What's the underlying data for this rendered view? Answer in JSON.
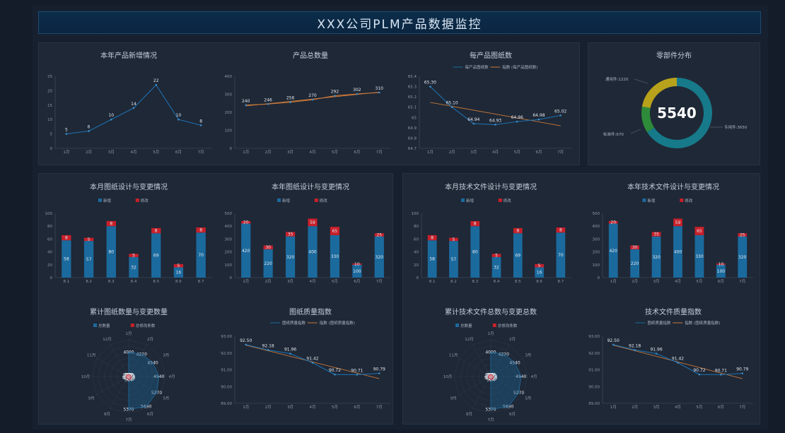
{
  "title": "XXX公司PLM产品数据监控",
  "colors": {
    "blue": "#1b6a9e",
    "red": "#c8202a",
    "orange": "#c8783a",
    "teal": "#167a8a",
    "green": "#2e8b3a",
    "yellow": "#b8a21c"
  },
  "chart_data": [
    {
      "id": "c1",
      "type": "line",
      "title": "本年产品新增情况",
      "categories": [
        "1月",
        "2月",
        "3月",
        "4月",
        "5月",
        "6月",
        "7月"
      ],
      "values": [
        5,
        6,
        10,
        14,
        22,
        10,
        8
      ],
      "yticks": [
        "0",
        "5",
        "10",
        "15",
        "20",
        "25"
      ],
      "ylim": [
        0,
        25
      ]
    },
    {
      "id": "c2",
      "type": "line",
      "title": "产品总数量",
      "categories": [
        "1月",
        "2月",
        "3月",
        "4月",
        "5月",
        "6月",
        "7月"
      ],
      "values": [
        240,
        246,
        256,
        270,
        292,
        302,
        310
      ],
      "yticks": [
        "0",
        "100",
        "200",
        "300",
        "400"
      ],
      "ylim": [
        0,
        400
      ]
    },
    {
      "id": "c3",
      "type": "line",
      "title": "每产品图纸数",
      "legend": [
        "每产品图纸数",
        "指数 (每产品图纸数)"
      ],
      "categories": [
        "1月",
        "2月",
        "3月",
        "4月",
        "5月",
        "6月",
        "7月"
      ],
      "values": [
        65.3,
        65.1,
        64.94,
        64.93,
        64.96,
        64.98,
        65.02
      ],
      "value_labels": [
        "65.30",
        "65.10",
        "64.94",
        "64.93",
        "64.96",
        "64.98",
        "65.02"
      ],
      "yticks": [
        "64.7",
        "64.8",
        "64.9",
        "65",
        "65.1",
        "65.2",
        "65.3",
        "65.4"
      ],
      "ylim": [
        64.7,
        65.4
      ]
    },
    {
      "id": "donut",
      "type": "pie",
      "title": "零部件分布",
      "total": "5540",
      "slices": [
        {
          "name": "专用件",
          "label": "专用件:3650",
          "value": 3650
        },
        {
          "name": "标准件",
          "label": "标准件:670",
          "value": 670
        },
        {
          "name": "通用件",
          "label": "通用件:1220",
          "value": 1220
        }
      ]
    },
    {
      "id": "b1",
      "type": "bar",
      "title": "本月图纸设计与变更情况",
      "legend": [
        "新增",
        "修改"
      ],
      "categories": [
        "8.1",
        "8.2",
        "8.3",
        "8.4",
        "8.5",
        "8.6",
        "8.7"
      ],
      "series": [
        {
          "name": "新增",
          "values": [
            58,
            57,
            80,
            32,
            69,
            16,
            70
          ]
        },
        {
          "name": "修改",
          "values": [
            8,
            5,
            8,
            5,
            8,
            5,
            8
          ]
        }
      ],
      "yticks": [
        "0",
        "20",
        "40",
        "60",
        "80",
        "100"
      ],
      "ylim": [
        0,
        100
      ]
    },
    {
      "id": "b2",
      "type": "bar",
      "title": "本年图纸设计与变更情况",
      "legend": [
        "新增",
        "修改"
      ],
      "categories": [
        "1月",
        "2月",
        "3月",
        "4月",
        "5月",
        "6月",
        "7月"
      ],
      "series": [
        {
          "name": "新增",
          "values": [
            420,
            220,
            320,
            400,
            330,
            100,
            320
          ]
        },
        {
          "name": "修改",
          "values": [
            20,
            30,
            35,
            59,
            65,
            10,
            25
          ]
        }
      ],
      "yticks": [
        "0",
        "100",
        "200",
        "300",
        "400",
        "500"
      ],
      "ylim": [
        0,
        500
      ]
    },
    {
      "id": "b3",
      "type": "bar",
      "title": "本月技术文件设计与变更情况",
      "legend": [
        "新增",
        "修改"
      ],
      "categories": [
        "8.1",
        "8.2",
        "8.3",
        "8.4",
        "8.5",
        "8.6",
        "8.7"
      ],
      "series": [
        {
          "name": "新增",
          "values": [
            58,
            57,
            80,
            32,
            69,
            16,
            70
          ]
        },
        {
          "name": "修改",
          "values": [
            8,
            5,
            8,
            5,
            8,
            5,
            8
          ]
        }
      ],
      "yticks": [
        "0",
        "20",
        "40",
        "60",
        "80",
        "100"
      ],
      "ylim": [
        0,
        100
      ]
    },
    {
      "id": "b4",
      "type": "bar",
      "title": "本年技术文件设计与变更情况",
      "legend": [
        "新增",
        "修改"
      ],
      "categories": [
        "1月",
        "2月",
        "3月",
        "4月",
        "5月",
        "6月",
        "7月"
      ],
      "series": [
        {
          "name": "新增",
          "values": [
            420,
            220,
            320,
            400,
            330,
            100,
            320
          ]
        },
        {
          "name": "修改",
          "values": [
            20,
            30,
            35,
            59,
            65,
            10,
            25
          ]
        }
      ],
      "yticks": [
        "0",
        "100",
        "200",
        "300",
        "400",
        "500"
      ],
      "ylim": [
        0,
        500
      ]
    },
    {
      "id": "r1",
      "type": "radar",
      "title": "累计图纸数量与变更数量",
      "legend": [
        "总数量",
        "总修改条数"
      ],
      "categories": [
        "1月",
        "2月",
        "3月",
        "4月",
        "5月",
        "6月",
        "7月",
        "8月",
        "9月",
        "10月",
        "11月",
        "12月"
      ],
      "series": [
        {
          "name": "总数量",
          "values": [
            4000,
            4220,
            4540,
            4940,
            5270,
            5690,
            5370,
            null,
            null,
            null,
            null,
            null
          ],
          "labels": [
            "4000",
            "4220",
            "4540",
            "4940",
            "5270",
            "5690",
            "5370",
            "",
            "",
            "",
            "",
            ""
          ]
        },
        {
          "name": "总修改条数",
          "values": [
            300,
            320,
            355,
            414,
            479,
            498,
            524,
            410,
            434,
            403,
            385,
            350
          ],
          "labels": [
            "300",
            "320",
            "355",
            "414",
            "479",
            "498",
            "524",
            "410",
            "434",
            "403",
            "385",
            "350"
          ]
        }
      ],
      "rmax": 6000
    },
    {
      "id": "i1",
      "type": "line",
      "title": "图纸质量指数",
      "legend": [
        "图纸质量指数",
        "指数 (图纸质量指数)"
      ],
      "categories": [
        "1月",
        "2月",
        "3月",
        "4月",
        "5月",
        "6月",
        "7月"
      ],
      "values": [
        92.5,
        92.18,
        91.96,
        91.42,
        90.72,
        90.71,
        90.79
      ],
      "value_labels": [
        "92.50",
        "92.18",
        "91.96",
        "91.42",
        "90.72",
        "90.71",
        "90.79"
      ],
      "yticks": [
        "89.00",
        "90.00",
        "91.00",
        "92.00",
        "93.00"
      ],
      "ylim": [
        89,
        93
      ]
    },
    {
      "id": "r2",
      "type": "radar",
      "title": "累计技术文件总数与变更总数",
      "legend": [
        "总数量",
        "总修改条数"
      ],
      "categories": [
        "1月",
        "2月",
        "3月",
        "4月",
        "5月",
        "6月",
        "7月",
        "8月",
        "9月",
        "10月",
        "11月",
        "12月"
      ],
      "series": [
        {
          "name": "总数量",
          "values": [
            4000,
            4220,
            4540,
            4940,
            5270,
            5690,
            5370,
            null,
            null,
            null,
            null,
            null
          ],
          "labels": [
            "4000",
            "4220",
            "4540",
            "4940",
            "5270",
            "5690",
            "5370",
            "",
            "",
            "",
            "",
            ""
          ]
        },
        {
          "name": "总修改条数",
          "values": [
            300,
            320,
            355,
            414,
            479,
            498,
            524,
            410,
            434,
            403,
            385,
            350
          ],
          "labels": [
            "300",
            "320",
            "355",
            "414",
            "479",
            "498",
            "524",
            "410",
            "434",
            "403",
            "385",
            "350"
          ]
        }
      ],
      "rmax": 6000
    },
    {
      "id": "i2",
      "type": "line",
      "title": "技术文件质量指数",
      "legend": [
        "图纸质量指数",
        "指数 (图纸质量指数)"
      ],
      "categories": [
        "1月",
        "2月",
        "3月",
        "4月",
        "5月",
        "6月",
        "7月"
      ],
      "values": [
        92.5,
        92.18,
        91.96,
        91.42,
        90.72,
        90.71,
        90.79
      ],
      "value_labels": [
        "92.50",
        "92.18",
        "91.96",
        "91.42",
        "90.72",
        "90.71",
        "90.79"
      ],
      "yticks": [
        "89.00",
        "90.00",
        "91.00",
        "92.00",
        "93.00"
      ],
      "ylim": [
        89,
        93
      ]
    }
  ]
}
